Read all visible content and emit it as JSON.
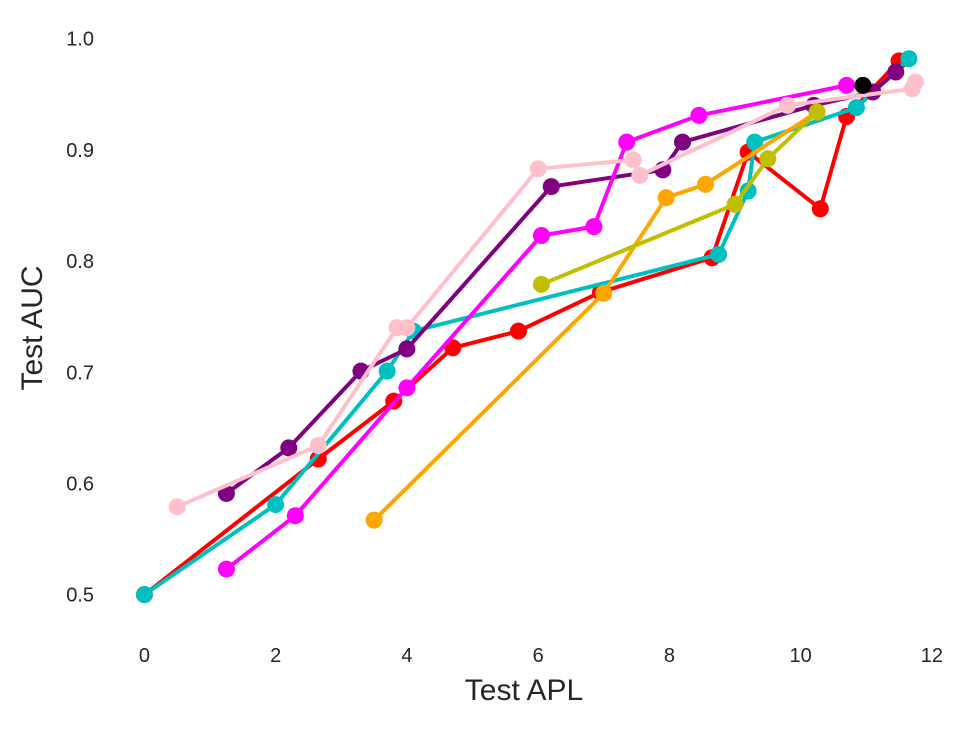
{
  "chart_data": {
    "type": "line",
    "title": "",
    "xlabel": "Test APL",
    "ylabel": "Test AUC",
    "xlim": [
      -0.6,
      12.2
    ],
    "ylim": [
      0.47,
      1.015
    ],
    "xticks": [
      0,
      2,
      4,
      6,
      8,
      10,
      12
    ],
    "xtick_labels": [
      "0",
      "2",
      "4",
      "6",
      "8",
      "10",
      "12"
    ],
    "yticks": [
      0.5,
      0.6,
      0.7,
      0.8,
      0.9,
      1.0
    ],
    "ytick_labels": [
      "0.5",
      "0.6",
      "0.7",
      "0.8",
      "0.9",
      "1.0"
    ],
    "grid": false,
    "legend": false,
    "series": [
      {
        "color": "#ff0000",
        "points": [
          [
            0.0,
            0.5
          ],
          [
            2.65,
            0.622
          ],
          [
            3.8,
            0.674
          ],
          [
            4.7,
            0.722
          ],
          [
            5.7,
            0.737
          ],
          [
            6.95,
            0.772
          ],
          [
            8.65,
            0.803
          ],
          [
            9.2,
            0.898
          ],
          [
            10.3,
            0.847
          ],
          [
            10.7,
            0.93
          ],
          [
            11.5,
            0.98
          ]
        ]
      },
      {
        "color": "#00bfbf",
        "points": [
          [
            0.0,
            0.5
          ],
          [
            2.0,
            0.581
          ],
          [
            3.7,
            0.701
          ],
          [
            4.1,
            0.737
          ],
          [
            8.75,
            0.806
          ],
          [
            9.2,
            0.863
          ],
          [
            9.3,
            0.907
          ],
          [
            10.85,
            0.938
          ],
          [
            11.65,
            0.982
          ]
        ]
      },
      {
        "color": "#800080",
        "points": [
          [
            1.25,
            0.591
          ],
          [
            2.2,
            0.632
          ],
          [
            3.3,
            0.701
          ],
          [
            4.0,
            0.721
          ],
          [
            6.2,
            0.867
          ],
          [
            7.9,
            0.882
          ],
          [
            8.2,
            0.907
          ],
          [
            10.2,
            0.94
          ],
          [
            11.1,
            0.952
          ],
          [
            11.45,
            0.97
          ]
        ]
      },
      {
        "color": "#ff00ff",
        "points": [
          [
            1.25,
            0.523
          ],
          [
            2.3,
            0.571
          ],
          [
            4.0,
            0.686
          ],
          [
            6.05,
            0.823
          ],
          [
            6.85,
            0.831
          ],
          [
            7.35,
            0.907
          ],
          [
            8.45,
            0.931
          ],
          [
            10.7,
            0.958
          ]
        ]
      },
      {
        "color": "#ffa500",
        "points": [
          [
            3.5,
            0.567
          ],
          [
            7.0,
            0.771
          ],
          [
            7.95,
            0.857
          ],
          [
            8.55,
            0.869
          ],
          [
            10.25,
            0.934
          ]
        ]
      },
      {
        "color": "#bfbf00",
        "points": [
          [
            6.05,
            0.779
          ],
          [
            9.0,
            0.851
          ],
          [
            9.5,
            0.892
          ],
          [
            10.25,
            0.934
          ]
        ]
      },
      {
        "color": "#ffc0cb",
        "points": [
          [
            0.5,
            0.579
          ],
          [
            2.65,
            0.634
          ],
          [
            3.85,
            0.74
          ],
          [
            4.0,
            0.74
          ],
          [
            6.0,
            0.883
          ],
          [
            7.45,
            0.891
          ],
          [
            7.55,
            0.877
          ],
          [
            9.8,
            0.94
          ],
          [
            11.7,
            0.955
          ],
          [
            11.75,
            0.961
          ]
        ]
      },
      {
        "color": "#000000",
        "points": [
          [
            10.95,
            0.958
          ]
        ]
      }
    ]
  }
}
